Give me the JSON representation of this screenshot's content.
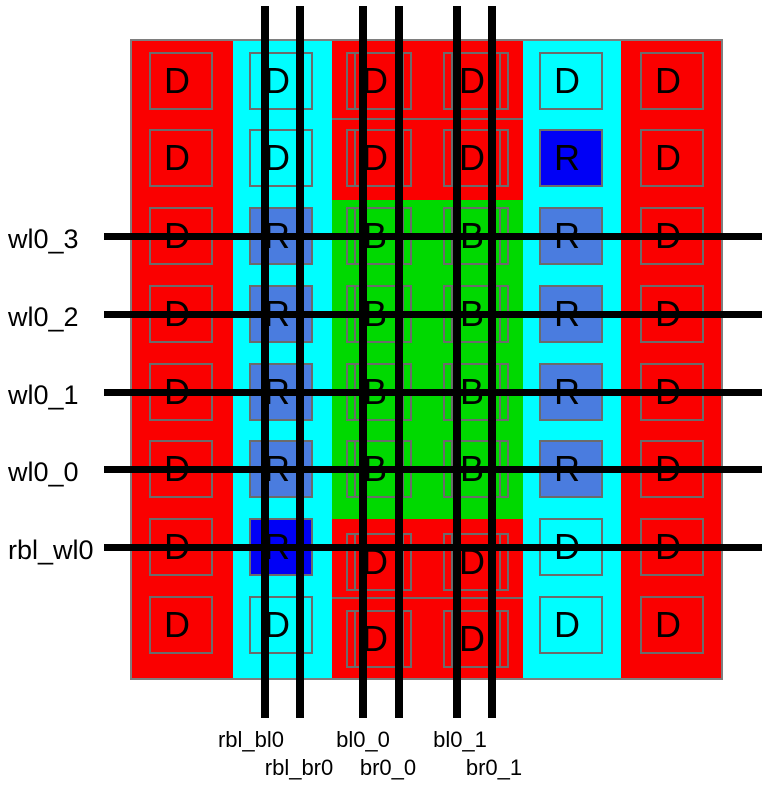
{
  "colors": {
    "dummy_red": "#fa0000",
    "replica_cyan": "#00feff",
    "bitcell_green": "#00d900",
    "replica_blue": "#4a7cdf",
    "replica_dark_blue": "#0000f6",
    "outline_gray": "#6b6b6b",
    "border_gray": "#7e7e7e",
    "line_black": "#000000"
  },
  "array": {
    "columns": [
      {
        "name": "dummy-column-left",
        "band": "dummy_red"
      },
      {
        "name": "replica-column-left",
        "band": "replica_cyan"
      },
      {
        "name": "bitcell-column-0",
        "band": "bitcell_region"
      },
      {
        "name": "bitcell-column-1",
        "band": "bitcell_region"
      },
      {
        "name": "replica-column-right",
        "band": "replica_cyan"
      },
      {
        "name": "dummy-column-right",
        "band": "dummy_red"
      }
    ],
    "rows": [
      {
        "cells": [
          {
            "label": "D",
            "fill": "none"
          },
          {
            "label": "D",
            "fill": "none"
          },
          {
            "label": "D",
            "fill": "none"
          },
          {
            "label": "D",
            "fill": "none"
          },
          {
            "label": "D",
            "fill": "none"
          },
          {
            "label": "D",
            "fill": "none"
          }
        ]
      },
      {
        "cells": [
          {
            "label": "D",
            "fill": "none"
          },
          {
            "label": "D",
            "fill": "none"
          },
          {
            "label": "D",
            "fill": "none"
          },
          {
            "label": "D",
            "fill": "none"
          },
          {
            "label": "R",
            "fill": "darkblue"
          },
          {
            "label": "D",
            "fill": "none"
          }
        ]
      },
      {
        "cells": [
          {
            "label": "D",
            "fill": "none"
          },
          {
            "label": "R",
            "fill": "blue"
          },
          {
            "label": "B",
            "fill": "none"
          },
          {
            "label": "B",
            "fill": "none"
          },
          {
            "label": "R",
            "fill": "blue"
          },
          {
            "label": "D",
            "fill": "none"
          }
        ]
      },
      {
        "cells": [
          {
            "label": "D",
            "fill": "none"
          },
          {
            "label": "R",
            "fill": "blue"
          },
          {
            "label": "B",
            "fill": "none"
          },
          {
            "label": "B",
            "fill": "none"
          },
          {
            "label": "R",
            "fill": "blue"
          },
          {
            "label": "D",
            "fill": "none"
          }
        ]
      },
      {
        "cells": [
          {
            "label": "D",
            "fill": "none"
          },
          {
            "label": "R",
            "fill": "blue"
          },
          {
            "label": "B",
            "fill": "none"
          },
          {
            "label": "B",
            "fill": "none"
          },
          {
            "label": "R",
            "fill": "blue"
          },
          {
            "label": "D",
            "fill": "none"
          }
        ]
      },
      {
        "cells": [
          {
            "label": "D",
            "fill": "none"
          },
          {
            "label": "R",
            "fill": "blue"
          },
          {
            "label": "B",
            "fill": "none"
          },
          {
            "label": "B",
            "fill": "none"
          },
          {
            "label": "R",
            "fill": "blue"
          },
          {
            "label": "D",
            "fill": "none"
          }
        ]
      },
      {
        "cells": [
          {
            "label": "D",
            "fill": "none"
          },
          {
            "label": "R",
            "fill": "darkblue"
          },
          {
            "label": "D",
            "fill": "none"
          },
          {
            "label": "D",
            "fill": "none"
          },
          {
            "label": "D",
            "fill": "none"
          },
          {
            "label": "D",
            "fill": "none"
          }
        ]
      },
      {
        "cells": [
          {
            "label": "D",
            "fill": "none"
          },
          {
            "label": "D",
            "fill": "none"
          },
          {
            "label": "D",
            "fill": "none"
          },
          {
            "label": "D",
            "fill": "none"
          },
          {
            "label": "D",
            "fill": "none"
          },
          {
            "label": "D",
            "fill": "none"
          }
        ]
      }
    ]
  },
  "wordlines": [
    {
      "label": "wl0_3"
    },
    {
      "label": "wl0_2"
    },
    {
      "label": "wl0_1"
    },
    {
      "label": "wl0_0"
    },
    {
      "label": "rbl_wl0"
    }
  ],
  "bitlines": [
    {
      "label": "rbl_bl0"
    },
    {
      "label": "rbl_br0"
    },
    {
      "label": "bl0_0"
    },
    {
      "label": "br0_0"
    },
    {
      "label": "bl0_1"
    },
    {
      "label": "br0_1"
    }
  ]
}
